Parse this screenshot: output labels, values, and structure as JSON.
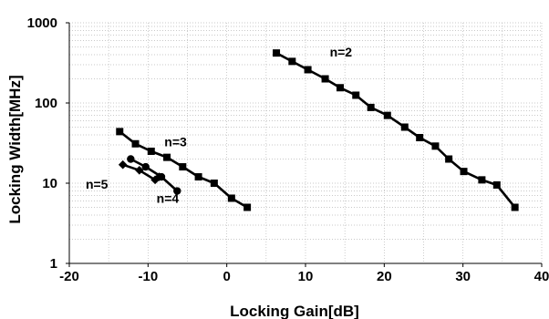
{
  "chart_data": {
    "type": "line",
    "title": "",
    "xlabel": "Locking Gain[dB]",
    "ylabel": "Locking Width[MHz]",
    "xlim": [
      -20,
      40
    ],
    "ylim": [
      1,
      1000
    ],
    "yscale": "log",
    "grid": true,
    "legend": "none",
    "x_ticks": [
      "-20",
      "-10",
      "0",
      "10",
      "20",
      "30",
      "40"
    ],
    "y_ticks": [
      "1",
      "10",
      "100",
      "1000"
    ],
    "series": [
      {
        "name": "n=2",
        "marker": "square",
        "x": [
          6.3,
          8.3,
          10.3,
          12.5,
          14.4,
          16.4,
          18.3,
          20.4,
          22.6,
          24.5,
          26.5,
          28.2,
          30.1,
          32.4,
          34.3,
          36.6
        ],
        "y": [
          420,
          330,
          260,
          200,
          155,
          125,
          88,
          70,
          50,
          37,
          29,
          20,
          14,
          11,
          9.5,
          5
        ]
      },
      {
        "name": "n=3",
        "marker": "square",
        "x": [
          -13.6,
          -11.6,
          -9.6,
          -7.6,
          -5.6,
          -3.6,
          -1.6,
          0.6,
          2.6
        ],
        "y": [
          44,
          31,
          25,
          21,
          16,
          12,
          10,
          6.5,
          5
        ]
      },
      {
        "name": "n=4",
        "marker": "circle",
        "x": [
          -12.2,
          -10.3,
          -8.3,
          -6.3
        ],
        "y": [
          20,
          16,
          12,
          8
        ]
      },
      {
        "name": "n=5",
        "marker": "diamond",
        "x": [
          -13.2,
          -11.1,
          -9.1,
          -8.6
        ],
        "y": [
          17,
          14.5,
          11,
          12
        ]
      }
    ],
    "annotations": [
      {
        "text": "n=2",
        "x": 14.5,
        "y": 380
      },
      {
        "text": "n=3",
        "x": -6.5,
        "y": 29
      },
      {
        "text": "n=4",
        "x": -7.5,
        "y": 5.7
      },
      {
        "text": "n=5",
        "x": -16.5,
        "y": 8.5
      }
    ],
    "colors": {
      "line": "#000000",
      "grid": "#b8b8b8"
    }
  }
}
